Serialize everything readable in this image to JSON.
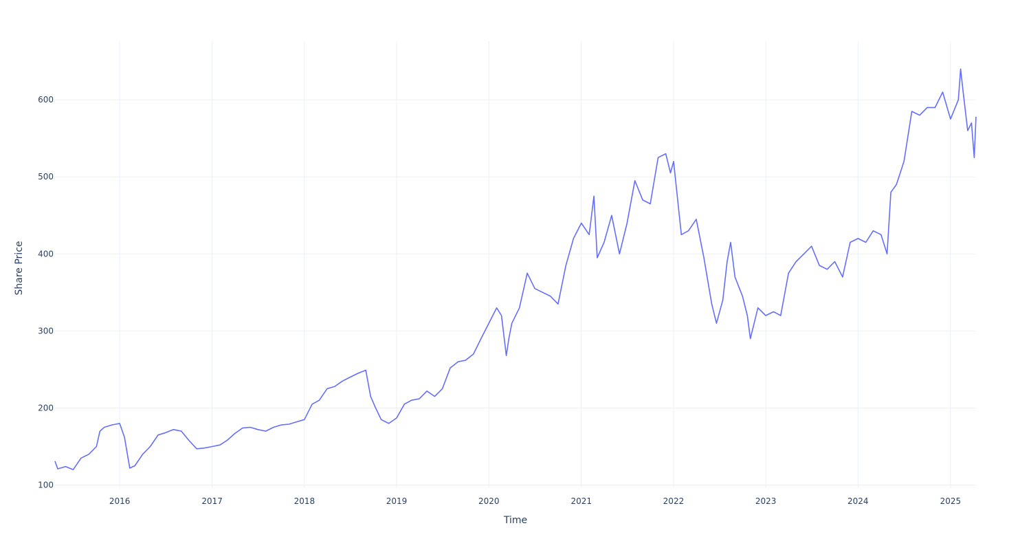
{
  "chart_data": {
    "type": "line",
    "title": "",
    "xlabel": "Time",
    "ylabel": "Share Price",
    "grid": true,
    "legend": "none",
    "colors": {
      "series": "#636efa",
      "grid": "#ebf0f8",
      "text": "#2a3f5f"
    },
    "xlim": [
      "2015-04-20",
      "2025-04-12"
    ],
    "ylim": [
      96,
      676
    ],
    "x_ticks": [
      "2016-01-01",
      "2017-01-01",
      "2018-01-01",
      "2019-01-01",
      "2020-01-01",
      "2021-01-01",
      "2022-01-01",
      "2023-01-01",
      "2024-01-01",
      "2025-01-01"
    ],
    "x_tick_labels": [
      "2016",
      "2017",
      "2018",
      "2019",
      "2020",
      "2021",
      "2022",
      "2023",
      "2024",
      "2025"
    ],
    "y_ticks": [
      100,
      200,
      300,
      400,
      500,
      600
    ],
    "y_tick_labels": [
      "100",
      "200",
      "300",
      "400",
      "500",
      "600"
    ],
    "series": [
      {
        "x": [
          "2015-04-20",
          "2015-05-01",
          "2015-06-01",
          "2015-07-01",
          "2015-08-01",
          "2015-09-01",
          "2015-10-01",
          "2015-10-15",
          "2015-11-01",
          "2015-12-01",
          "2016-01-01",
          "2016-01-20",
          "2016-02-10",
          "2016-03-01",
          "2016-04-01",
          "2016-05-01",
          "2016-06-01",
          "2016-07-01",
          "2016-08-01",
          "2016-09-01",
          "2016-10-01",
          "2016-11-01",
          "2016-12-01",
          "2017-01-01",
          "2017-02-01",
          "2017-03-01",
          "2017-04-01",
          "2017-05-01",
          "2017-06-01",
          "2017-07-01",
          "2017-08-01",
          "2017-09-01",
          "2017-10-01",
          "2017-11-01",
          "2017-12-01",
          "2018-01-01",
          "2018-02-01",
          "2018-03-01",
          "2018-04-01",
          "2018-05-01",
          "2018-06-01",
          "2018-07-01",
          "2018-08-01",
          "2018-09-01",
          "2018-09-20",
          "2018-10-10",
          "2018-11-01",
          "2018-12-01",
          "2019-01-01",
          "2019-02-01",
          "2019-03-01",
          "2019-04-01",
          "2019-05-01",
          "2019-06-01",
          "2019-07-01",
          "2019-08-01",
          "2019-09-01",
          "2019-10-01",
          "2019-11-01",
          "2019-12-01",
          "2020-01-01",
          "2020-02-01",
          "2020-02-20",
          "2020-03-10",
          "2020-03-20",
          "2020-04-01",
          "2020-05-01",
          "2020-06-01",
          "2020-07-01",
          "2020-08-01",
          "2020-09-01",
          "2020-10-01",
          "2020-11-01",
          "2020-12-01",
          "2021-01-01",
          "2021-02-01",
          "2021-02-20",
          "2021-03-05",
          "2021-04-01",
          "2021-05-01",
          "2021-06-01",
          "2021-07-01",
          "2021-08-01",
          "2021-09-01",
          "2021-10-01",
          "2021-11-01",
          "2021-12-01",
          "2021-12-20",
          "2022-01-01",
          "2022-02-01",
          "2022-03-01",
          "2022-04-01",
          "2022-05-01",
          "2022-06-01",
          "2022-06-20",
          "2022-07-15",
          "2022-08-01",
          "2022-08-15",
          "2022-09-01",
          "2022-10-01",
          "2022-10-20",
          "2022-11-01",
          "2022-12-01",
          "2023-01-01",
          "2023-02-01",
          "2023-03-01",
          "2023-04-01",
          "2023-05-01",
          "2023-06-01",
          "2023-07-01",
          "2023-08-01",
          "2023-09-01",
          "2023-10-01",
          "2023-11-01",
          "2023-12-01",
          "2024-01-01",
          "2024-02-01",
          "2024-03-01",
          "2024-04-01",
          "2024-04-25",
          "2024-05-10",
          "2024-06-01",
          "2024-07-01",
          "2024-08-01",
          "2024-09-01",
          "2024-10-01",
          "2024-11-01",
          "2024-12-01",
          "2025-01-01",
          "2025-02-01",
          "2025-02-10",
          "2025-02-20",
          "2025-03-10",
          "2025-03-25",
          "2025-04-05",
          "2025-04-12"
        ],
        "y": [
          131,
          121,
          124,
          120,
          135,
          140,
          150,
          170,
          175,
          178,
          180,
          162,
          122,
          125,
          140,
          150,
          165,
          168,
          172,
          170,
          158,
          147,
          148,
          150,
          152,
          158,
          167,
          174,
          175,
          172,
          170,
          175,
          178,
          179,
          182,
          185,
          205,
          210,
          225,
          228,
          235,
          240,
          245,
          249,
          215,
          200,
          185,
          180,
          187,
          205,
          210,
          212,
          222,
          215,
          225,
          252,
          260,
          262,
          270,
          290,
          310,
          330,
          320,
          268,
          290,
          310,
          330,
          375,
          355,
          350,
          345,
          335,
          385,
          420,
          440,
          425,
          475,
          395,
          415,
          450,
          400,
          440,
          495,
          470,
          465,
          525,
          530,
          505,
          520,
          425,
          430,
          445,
          395,
          335,
          310,
          340,
          390,
          415,
          370,
          345,
          320,
          290,
          330,
          320,
          325,
          320,
          375,
          390,
          400,
          410,
          385,
          380,
          390,
          370,
          415,
          420,
          415,
          430,
          425,
          400,
          480,
          490,
          520,
          585,
          580,
          590,
          590,
          610,
          575,
          600,
          640,
          610,
          560,
          570,
          525,
          578
        ]
      }
    ]
  }
}
